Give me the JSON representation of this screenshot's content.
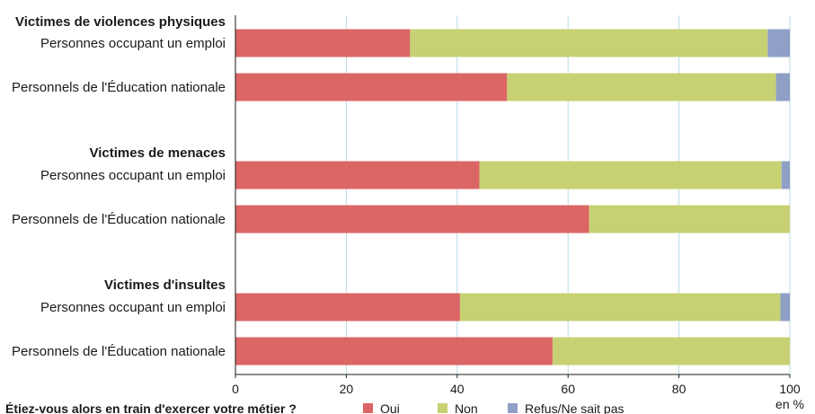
{
  "chart_data": {
    "type": "bar",
    "orientation": "horizontal",
    "stacked": true,
    "groups": [
      {
        "label": "Victimes de violences physiques",
        "rows": [
          {
            "label": "Personnes occupant un emploi",
            "values": [
              31.5,
              64.5,
              4.0
            ]
          },
          {
            "label": "Personnels de l'Éducation nationale",
            "values": [
              49,
              48.5,
              2.5
            ]
          }
        ]
      },
      {
        "label": "Victimes de menaces",
        "rows": [
          {
            "label": "Personnes occupant un emploi",
            "values": [
              44,
              54.5,
              1.5
            ]
          },
          {
            "label": "Personnels de l'Éducation nationale",
            "values": [
              63.8,
              36.2,
              0
            ]
          }
        ]
      },
      {
        "label": "Victimes d'insultes",
        "rows": [
          {
            "label": "Personnes occupant un emploi",
            "values": [
              40.5,
              57.8,
              1.7
            ]
          },
          {
            "label": "Personnels de l'Éducation nationale",
            "values": [
              57.2,
              42.8,
              0
            ]
          }
        ]
      }
    ],
    "series": [
      {
        "name": "Oui",
        "color": "#dc6565"
      },
      {
        "name": "Non",
        "color": "#c7d173"
      },
      {
        "name": "Refus/Ne sait pas",
        "color": "#8f9fc6"
      }
    ],
    "xlim": [
      0,
      100
    ],
    "xticks": [
      0,
      20,
      40,
      60,
      80,
      100
    ],
    "unit_label": "en %",
    "legend_title": "Étiez-vous alors en train d'exercer votre métier ?",
    "grid": true,
    "grid_color": "#b9dbe6"
  }
}
